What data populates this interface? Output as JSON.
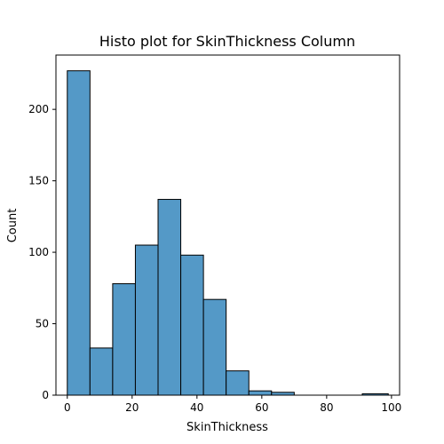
{
  "chart_data": {
    "type": "bar",
    "subtype": "histogram",
    "title": "Histo plot for SkinThickness Column",
    "xlabel": "SkinThickness",
    "ylabel": "Count",
    "bin_edges": [
      0,
      7,
      14,
      21,
      28,
      35,
      42,
      49,
      56,
      63,
      70,
      77,
      84,
      91,
      99
    ],
    "values": [
      227,
      33,
      78,
      105,
      137,
      98,
      67,
      17,
      3,
      2,
      0,
      0,
      0,
      1
    ],
    "xlim": [
      -3.5,
      102.5
    ],
    "ylim": [
      0,
      238
    ],
    "x_ticks": [
      0,
      20,
      40,
      60,
      80,
      100
    ],
    "y_ticks": [
      0,
      50,
      100,
      150,
      200
    ],
    "bar_color": "#5499c7",
    "edge_color": "#000000",
    "grid": false,
    "legend": "none"
  }
}
